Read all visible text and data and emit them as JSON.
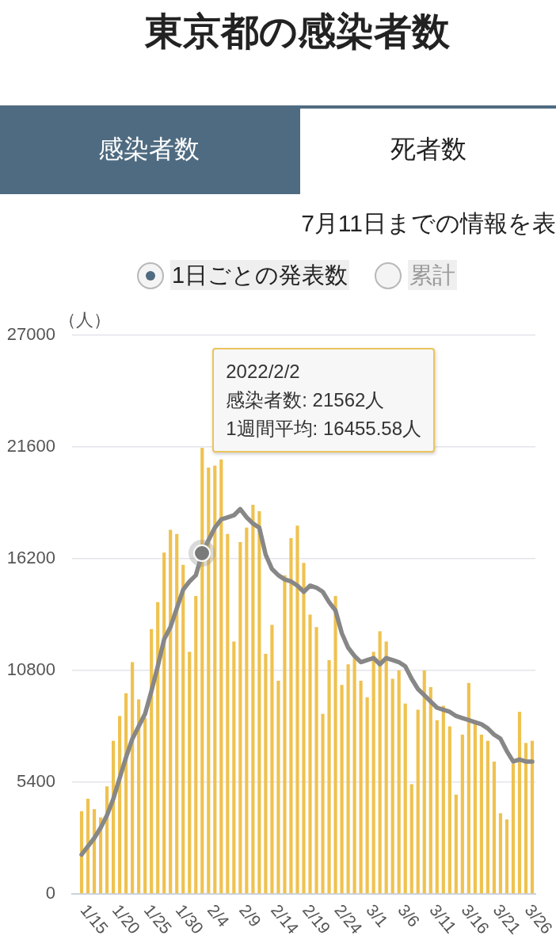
{
  "chart_data": {
    "type": "bar",
    "title": "東京都の感染者数",
    "subtitle": "7月11日までの情報を表",
    "ylabel": "（人）",
    "annotations": [
      "感染者数",
      "死者数",
      "1日ごとの発表数",
      "累計",
      {
        "text": "2022/2/2\n感染者数: 21562人\n1週間平均: 16455.58人",
        "x": "2022-02-02",
        "y": 21562
      }
    ],
    "x": [
      "2022-01-14",
      "2022-01-15",
      "2022-01-16",
      "2022-01-17",
      "2022-01-18",
      "2022-01-19",
      "2022-01-20",
      "2022-01-21",
      "2022-01-22",
      "2022-01-23",
      "2022-01-24",
      "2022-01-25",
      "2022-01-26",
      "2022-01-27",
      "2022-01-28",
      "2022-01-29",
      "2022-01-30",
      "2022-01-31",
      "2022-02-01",
      "2022-02-02",
      "2022-02-03",
      "2022-02-04",
      "2022-02-05",
      "2022-02-06",
      "2022-02-07",
      "2022-02-08",
      "2022-02-09",
      "2022-02-10",
      "2022-02-11",
      "2022-02-12",
      "2022-02-13",
      "2022-02-14",
      "2022-02-15",
      "2022-02-16",
      "2022-02-17",
      "2022-02-18",
      "2022-02-19",
      "2022-02-20",
      "2022-02-21",
      "2022-02-22",
      "2022-02-23",
      "2022-02-24",
      "2022-02-25",
      "2022-02-26",
      "2022-02-27",
      "2022-02-28",
      "2022-03-01",
      "2022-03-02",
      "2022-03-03",
      "2022-03-04",
      "2022-03-05",
      "2022-03-06",
      "2022-03-07",
      "2022-03-08",
      "2022-03-09",
      "2022-03-10",
      "2022-03-11",
      "2022-03-12",
      "2022-03-13",
      "2022-03-14",
      "2022-03-15",
      "2022-03-16",
      "2022-03-17",
      "2022-03-18",
      "2022-03-19",
      "2022-03-20",
      "2022-03-21",
      "2022-03-22",
      "2022-03-23",
      "2022-03-24",
      "2022-03-25",
      "2022-03-26"
    ],
    "series": [
      {
        "color": "#efc24f",
        "values": [
          4000,
          4600,
          4100,
          3700,
          5200,
          7400,
          8600,
          9700,
          11200,
          9400,
          8500,
          12800,
          14100,
          16500,
          17600,
          17400,
          15900,
          11700,
          14400,
          21562,
          20600,
          20700,
          21000,
          17400,
          12200,
          17000,
          17700,
          18800,
          18500,
          11600,
          13000,
          10300,
          15400,
          17200,
          17800,
          16000,
          13500,
          12900,
          8700,
          11300,
          14400,
          10100,
          11100,
          11400,
          10300,
          9500,
          11700,
          12700,
          12200,
          10400,
          10800,
          9200,
          5300,
          8900,
          10800,
          10000,
          8400,
          9100,
          8100,
          4800,
          7700,
          10200,
          8400,
          7700,
          7400,
          6400,
          3900,
          3600,
          6300,
          8800,
          7300,
          7400
        ]
      },
      {
        "type": "line",
        "color": "#878787",
        "values": [
          1900,
          2300,
          2700,
          3200,
          3800,
          4600,
          5600,
          6600,
          7500,
          8100,
          8700,
          9800,
          11000,
          12300,
          12900,
          13800,
          14700,
          15100,
          15400,
          16455.58,
          17100,
          17700,
          18100,
          18200,
          18300,
          18600,
          18200,
          17900,
          17700,
          16400,
          15700,
          15400,
          15200,
          15100,
          14900,
          14600,
          14900,
          14800,
          14600,
          14100,
          13700,
          12600,
          11900,
          11500,
          11200,
          11300,
          11400,
          11100,
          11400,
          11300,
          11200,
          11000,
          10400,
          9900,
          9600,
          9300,
          9000,
          8900,
          8800,
          8600,
          8500,
          8400,
          8300,
          8200,
          8000,
          7700,
          7500,
          6900,
          6400,
          6500,
          6400,
          6400
        ]
      }
    ],
    "xlim": [
      "2022-01-12T12:00",
      "2022-03-26T12:00"
    ],
    "xticks": [
      {
        "value": "2022-01-15",
        "label": "1/15"
      },
      {
        "value": "2022-01-20",
        "label": "1/20"
      },
      {
        "value": "2022-01-25",
        "label": "1/25"
      },
      {
        "value": "2022-01-30",
        "label": "1/30"
      },
      {
        "value": "2022-02-04",
        "label": "2/4"
      },
      {
        "value": "2022-02-09",
        "label": "2/9"
      },
      {
        "value": "2022-02-14",
        "label": "2/14"
      },
      {
        "value": "2022-02-19",
        "label": "2/19"
      },
      {
        "value": "2022-02-24",
        "label": "2/24"
      },
      {
        "value": "2022-03-01",
        "label": "3/1"
      },
      {
        "value": "2022-03-06",
        "label": "3/6"
      },
      {
        "value": "2022-03-11",
        "label": "3/11"
      },
      {
        "value": "2022-03-16",
        "label": "3/16"
      },
      {
        "value": "2022-03-21",
        "label": "3/21"
      },
      {
        "value": "2022-03-26",
        "label": "3/26"
      }
    ],
    "ylim": [
      0,
      27000
    ],
    "yticks": [
      0,
      5400,
      10800,
      16200,
      21600,
      27000
    ],
    "grid": "y"
  }
}
